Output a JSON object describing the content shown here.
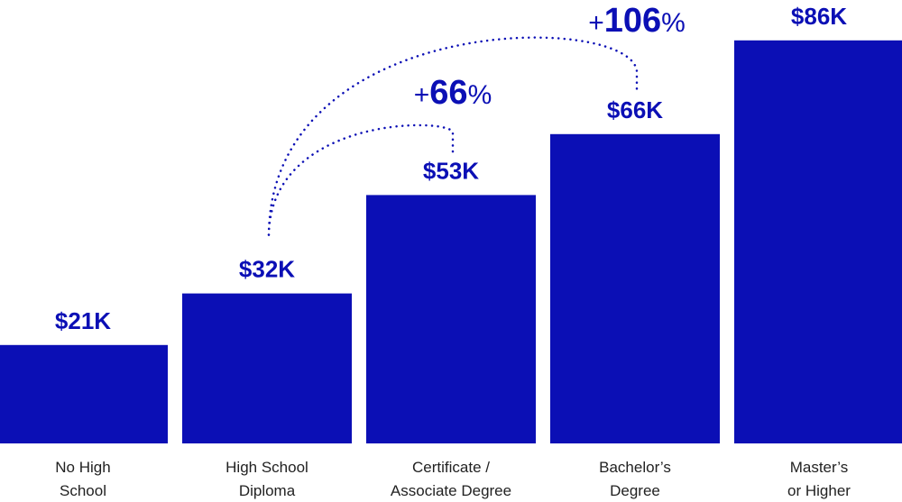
{
  "chart_data": {
    "type": "bar",
    "categories": [
      [
        "No High",
        "School"
      ],
      [
        "High School",
        "Diploma"
      ],
      [
        "Certificate /",
        "Associate Degree"
      ],
      [
        "Bachelor’s",
        "Degree"
      ],
      [
        "Master’s",
        "or Higher"
      ]
    ],
    "values": [
      21,
      32,
      53,
      66,
      86
    ],
    "value_labels": [
      "$21K",
      "$32K",
      "$53K",
      "$66K",
      "$86K"
    ],
    "units": "thousands of dollars",
    "annotations": [
      {
        "from_index": 1,
        "to_index": 2,
        "prefix": "+",
        "value": "66",
        "suffix": "%"
      },
      {
        "from_index": 1,
        "to_index": 3,
        "prefix": "+",
        "value": "106",
        "suffix": "%"
      }
    ],
    "grid": false,
    "legend": "none"
  },
  "colors": {
    "bar": "#0b0fb5",
    "label": "#0b0fb5",
    "category_text": "#222222"
  }
}
